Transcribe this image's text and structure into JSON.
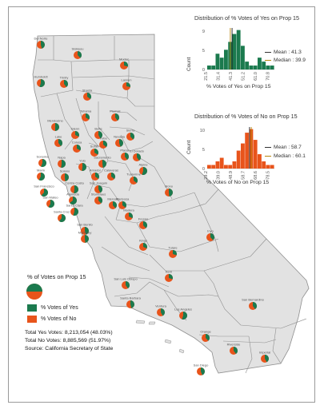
{
  "colors": {
    "yes": "#1b7a4e",
    "no": "#e8541b",
    "land": "#e2e2e2",
    "border": "#8f8f8f",
    "frame": "#9a9a9a"
  },
  "counties": [
    {
      "name": "Del Norte",
      "yes": 0.46
    },
    {
      "name": "Siskiyou",
      "yes": 0.38
    },
    {
      "name": "Modoc",
      "yes": 0.3
    },
    {
      "name": "Humboldt",
      "yes": 0.55
    },
    {
      "name": "Trinity",
      "yes": 0.4
    },
    {
      "name": "Shasta",
      "yes": 0.35
    },
    {
      "name": "Lassen",
      "yes": 0.28
    },
    {
      "name": "Tehama",
      "yes": 0.34
    },
    {
      "name": "Plumas",
      "yes": 0.4
    },
    {
      "name": "Mendocino",
      "yes": 0.5
    },
    {
      "name": "Glenn",
      "yes": 0.32
    },
    {
      "name": "Butte",
      "yes": 0.42
    },
    {
      "name": "Sierra",
      "yes": 0.38
    },
    {
      "name": "Lake",
      "yes": 0.4
    },
    {
      "name": "Colusa",
      "yes": 0.33
    },
    {
      "name": "Sutter",
      "yes": 0.34
    },
    {
      "name": "Yuba",
      "yes": 0.36
    },
    {
      "name": "Nevada",
      "yes": 0.45
    },
    {
      "name": "El Dorado",
      "yes": 0.4
    },
    {
      "name": "Placer",
      "yes": 0.4
    },
    {
      "name": "Sonoma",
      "yes": 0.56
    },
    {
      "name": "Napa",
      "yes": 0.52
    },
    {
      "name": "Yolo",
      "yes": 0.52
    },
    {
      "name": "Sacramento",
      "yes": 0.48
    },
    {
      "name": "Alpine",
      "yes": 0.55
    },
    {
      "name": "Marin",
      "yes": 0.58
    },
    {
      "name": "Solano",
      "yes": 0.48
    },
    {
      "name": "Amador",
      "yes": 0.35
    },
    {
      "name": "Contra Costa",
      "yes": 0.52
    },
    {
      "name": "San Joaquin",
      "yes": 0.42
    },
    {
      "name": "Calaveras",
      "yes": 0.36
    },
    {
      "name": "Tuolumne",
      "yes": 0.36
    },
    {
      "name": "San Francisco",
      "yes": 0.62
    },
    {
      "name": "Alameda",
      "yes": 0.64
    },
    {
      "name": "San Mateo",
      "yes": 0.58
    },
    {
      "name": "Stanislaus",
      "yes": 0.38
    },
    {
      "name": "Mono",
      "yes": 0.48
    },
    {
      "name": "Santa Clara",
      "yes": 0.55
    },
    {
      "name": "Mariposa",
      "yes": 0.35
    },
    {
      "name": "Merced",
      "yes": 0.38
    },
    {
      "name": "Santa Cruz",
      "yes": 0.6
    },
    {
      "name": "Madera",
      "yes": 0.32
    },
    {
      "name": "San Benito",
      "yes": 0.45
    },
    {
      "name": "Fresno",
      "yes": 0.38
    },
    {
      "name": "Inyo",
      "yes": 0.38
    },
    {
      "name": "Monterey",
      "yes": 0.48
    },
    {
      "name": "Kings",
      "yes": 0.32
    },
    {
      "name": "Tulare",
      "yes": 0.3
    },
    {
      "name": "Kern",
      "yes": 0.3
    },
    {
      "name": "San Luis Obispo",
      "yes": 0.4
    },
    {
      "name": "Santa Barbara",
      "yes": 0.46
    },
    {
      "name": "Ventura",
      "yes": 0.42
    },
    {
      "name": "Los Angeles",
      "yes": 0.55
    },
    {
      "name": "San Bernardino",
      "yes": 0.4
    },
    {
      "name": "Orange",
      "yes": 0.38
    },
    {
      "name": "Riverside",
      "yes": 0.4
    },
    {
      "name": "San Diego",
      "yes": 0.44
    },
    {
      "name": "Imperial",
      "yes": 0.42
    }
  ],
  "histograms": {
    "yes": {
      "title": "Distribution of % Votes of Yes on Prop 15",
      "xlabel": "% Votes of Yes on Prop 15",
      "ylabel": "Count",
      "yticks": [
        "0",
        "5",
        "9"
      ],
      "xticks": [
        "21.5",
        "31.4",
        "41.3",
        "51.2",
        "61.0",
        "70.8"
      ],
      "counts": [
        1,
        1,
        4,
        3,
        5,
        7,
        9,
        10,
        6,
        2,
        1,
        1,
        3,
        2,
        1,
        1
      ],
      "mean_label": "Mean : 41.3",
      "median_label": "Median : 39.9",
      "mean": 41.3,
      "median": 39.9,
      "xmin": 21.5,
      "xmax": 75.0
    },
    "no": {
      "title": "Distribution of % Votes of No on Prop 15",
      "xlabel": "% Votes of No on Prop 15",
      "ylabel": "Count",
      "yticks": [
        "0",
        "5",
        "10"
      ],
      "xticks": [
        "29.2",
        "39.0",
        "48.9",
        "58.7",
        "68.6",
        "78.5"
      ],
      "counts": [
        1,
        1,
        2,
        3,
        1,
        1,
        2,
        5,
        7,
        10,
        11,
        8,
        4,
        2,
        1,
        1
      ],
      "mean_label": "Mean : 58.7",
      "median_label": "Median : 60.1",
      "mean": 58.7,
      "median": 60.1,
      "xmin": 25.0,
      "xmax": 78.5
    }
  },
  "legend": {
    "title": "% of Votes on Prop 15",
    "yes_label": "% Votes of Yes",
    "no_label": "% Votes of No"
  },
  "totals": {
    "yes": "Total Yes Votes: 8,213,054 (48.03%)",
    "no": "Total No Votes: 8,885,569 (51.97%)",
    "source": "Source: California Secretary of State"
  }
}
